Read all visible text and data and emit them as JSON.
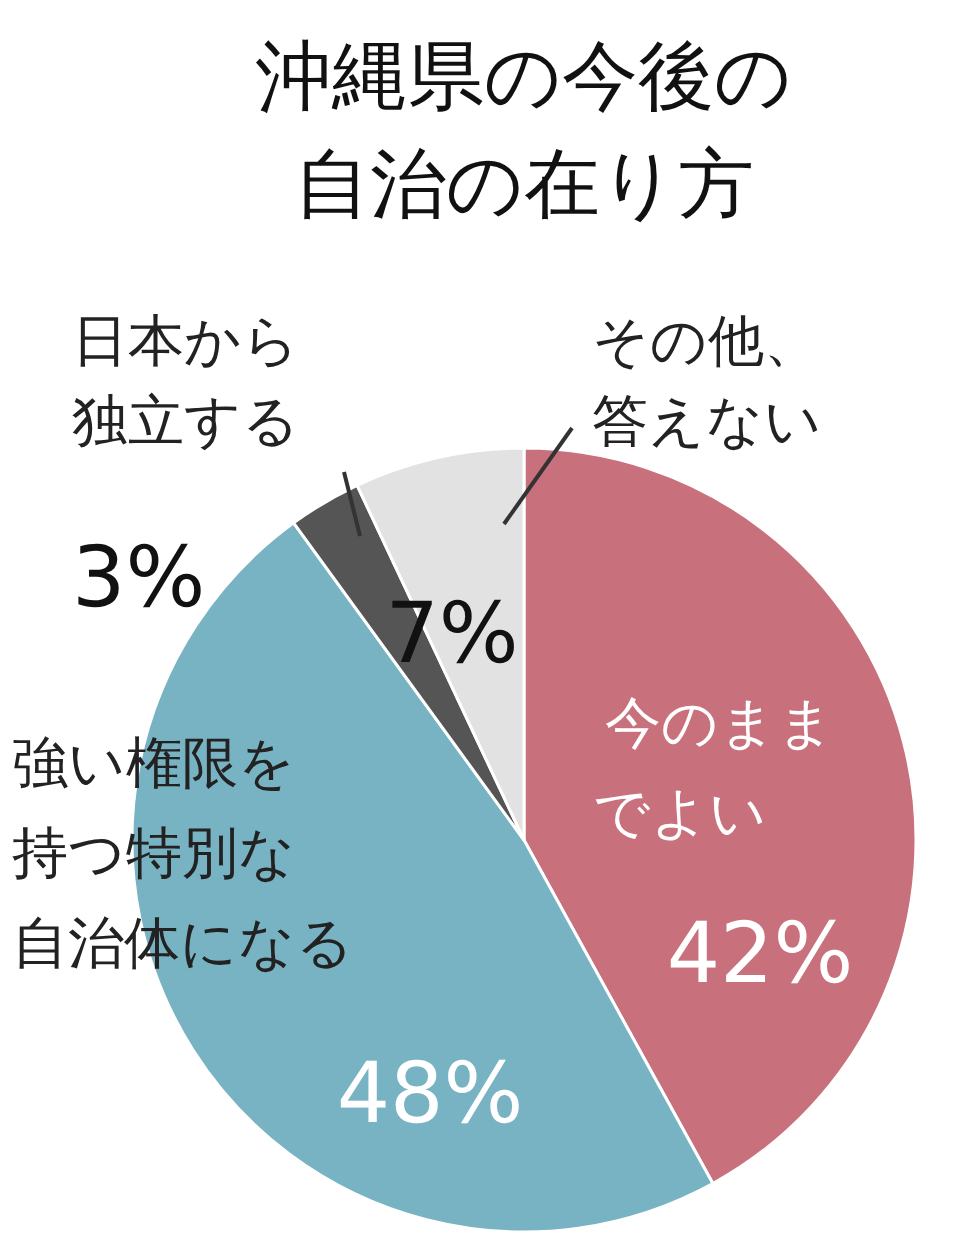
{
  "chart_data": {
    "type": "pie",
    "title": "沖縄県の今後の自治の在り方",
    "categories": [
      "今のままでよい",
      "強い権限を持つ特別な自治体になる",
      "日本から独立する",
      "その他、答えない"
    ],
    "values": [
      42,
      48,
      3,
      7
    ],
    "colors": [
      "#c8707b",
      "#78b3c3",
      "#555555",
      "#e2e2e2"
    ],
    "value_labels": [
      "42%",
      "48%",
      "3%",
      "7%"
    ]
  }
}
